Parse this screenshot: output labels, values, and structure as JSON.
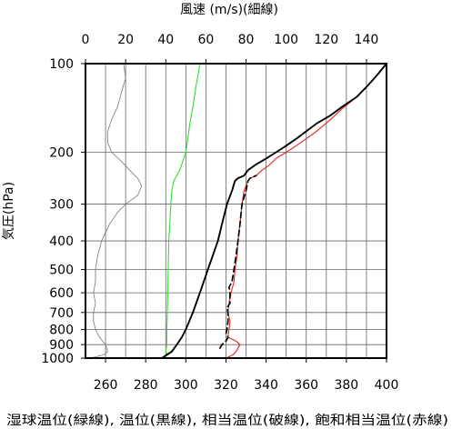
{
  "chart_data": {
    "type": "line",
    "title": "",
    "top_axis_label": "風速 (m/s)(細線)",
    "xlabel": "湿球温位(緑線), 温位(黒線), 相当温位(破線), 飽和相当温位(赤線)",
    "ylabel": "気圧(hPa)",
    "x_range": [
      250,
      400
    ],
    "x_ticks": [
      260,
      280,
      300,
      320,
      340,
      360,
      380,
      400
    ],
    "wind_range": [
      0,
      150
    ],
    "wind_ticks": [
      0,
      20,
      40,
      60,
      80,
      100,
      120,
      140
    ],
    "y_range": [
      1000,
      100
    ],
    "y_scale": "log",
    "y_ticks": [
      100,
      200,
      300,
      400,
      500,
      600,
      700,
      800,
      900,
      1000
    ],
    "grid": true,
    "colors": {
      "wet_bulb": "#33dd33",
      "potential": "#000000",
      "equivalent": "#000000",
      "saturated_equivalent": "#ee2222",
      "wind": "#777777",
      "grid": "#666666"
    },
    "series": [
      {
        "key": "wet_bulb",
        "axis": "temperature",
        "points": [
          [
            288,
            1000
          ],
          [
            291,
            975
          ],
          [
            290,
            950
          ],
          [
            290.5,
            900
          ],
          [
            290.5,
            850
          ],
          [
            290.5,
            800
          ],
          [
            290.8,
            700
          ],
          [
            291,
            600
          ],
          [
            291.2,
            500
          ],
          [
            291.5,
            400
          ],
          [
            292,
            350
          ],
          [
            292.5,
            300
          ],
          [
            293,
            270
          ],
          [
            294,
            250
          ],
          [
            297,
            230
          ],
          [
            299,
            210
          ],
          [
            300,
            200
          ],
          [
            301,
            180
          ],
          [
            302,
            160
          ],
          [
            303.5,
            140
          ],
          [
            305,
            120
          ],
          [
            306,
            110
          ],
          [
            307,
            100
          ]
        ]
      },
      {
        "key": "potential",
        "axis": "temperature",
        "points": [
          [
            288,
            1000
          ],
          [
            290.5,
            975
          ],
          [
            293,
            950
          ],
          [
            295.5,
            900
          ],
          [
            298,
            850
          ],
          [
            300,
            800
          ],
          [
            303.5,
            700
          ],
          [
            307,
            600
          ],
          [
            311,
            500
          ],
          [
            316,
            400
          ],
          [
            318,
            350
          ],
          [
            320.5,
            300
          ],
          [
            323,
            270
          ],
          [
            324.5,
            250
          ],
          [
            326,
            245
          ],
          [
            329,
            240
          ],
          [
            331,
            230
          ],
          [
            335,
            220
          ],
          [
            340,
            210
          ],
          [
            345,
            200
          ],
          [
            350,
            190
          ],
          [
            355,
            180
          ],
          [
            365,
            160
          ],
          [
            372,
            150
          ],
          [
            378,
            140
          ],
          [
            385,
            130
          ],
          [
            390,
            120
          ],
          [
            395,
            110
          ],
          [
            400,
            100
          ]
        ]
      },
      {
        "key": "equivalent",
        "axis": "temperature",
        "points": [
          [
            317,
            925
          ],
          [
            318,
            900
          ],
          [
            320,
            875
          ],
          [
            321,
            850
          ],
          [
            320,
            825
          ],
          [
            320.5,
            800
          ],
          [
            321,
            750
          ],
          [
            321,
            700
          ],
          [
            320.5,
            675
          ],
          [
            322,
            650
          ],
          [
            322,
            600
          ],
          [
            321.5,
            575
          ],
          [
            323,
            550
          ],
          [
            324,
            500
          ],
          [
            325,
            450
          ],
          [
            326,
            400
          ],
          [
            327,
            350
          ],
          [
            328,
            300
          ],
          [
            330,
            270
          ],
          [
            331,
            250
          ],
          [
            332,
            245
          ],
          [
            335,
            240
          ]
        ]
      },
      {
        "key": "saturated_equivalent",
        "axis": "temperature",
        "points": [
          [
            313,
            1000
          ],
          [
            320,
            1000
          ],
          [
            323.5,
            975
          ],
          [
            325,
            950
          ],
          [
            327,
            900
          ],
          [
            325,
            875
          ],
          [
            321,
            850
          ],
          [
            321.5,
            800
          ],
          [
            322,
            750
          ],
          [
            321,
            700
          ],
          [
            321.5,
            650
          ],
          [
            322.5,
            600
          ],
          [
            324,
            550
          ],
          [
            324.5,
            500
          ],
          [
            325.5,
            450
          ],
          [
            326,
            400
          ],
          [
            327,
            350
          ],
          [
            328,
            300
          ],
          [
            329,
            270
          ],
          [
            331,
            250
          ],
          [
            332,
            245
          ],
          [
            335,
            240
          ],
          [
            338,
            230
          ],
          [
            342,
            220
          ],
          [
            345,
            210
          ],
          [
            350,
            200
          ],
          [
            355,
            190
          ],
          [
            365,
            170
          ],
          [
            372,
            155
          ],
          [
            378,
            142
          ],
          [
            385,
            130
          ],
          [
            390,
            120
          ],
          [
            395,
            110
          ],
          [
            400,
            100
          ]
        ]
      },
      {
        "key": "wind",
        "axis": "wind",
        "points": [
          [
            2,
            1000
          ],
          [
            5,
            990
          ],
          [
            9,
            975
          ],
          [
            11,
            950
          ],
          [
            10,
            900
          ],
          [
            7,
            850
          ],
          [
            5,
            800
          ],
          [
            4,
            750
          ],
          [
            4,
            700
          ],
          [
            5,
            650
          ],
          [
            4,
            600
          ],
          [
            5,
            550
          ],
          [
            5,
            500
          ],
          [
            6,
            450
          ],
          [
            8,
            400
          ],
          [
            12,
            350
          ],
          [
            16,
            320
          ],
          [
            20,
            300
          ],
          [
            26,
            280
          ],
          [
            28,
            260
          ],
          [
            26,
            245
          ],
          [
            22,
            230
          ],
          [
            18,
            215
          ],
          [
            13,
            200
          ],
          [
            11,
            185
          ],
          [
            11,
            170
          ],
          [
            13,
            155
          ],
          [
            16,
            140
          ],
          [
            18,
            125
          ],
          [
            20,
            112
          ],
          [
            19,
            100
          ]
        ]
      }
    ]
  }
}
